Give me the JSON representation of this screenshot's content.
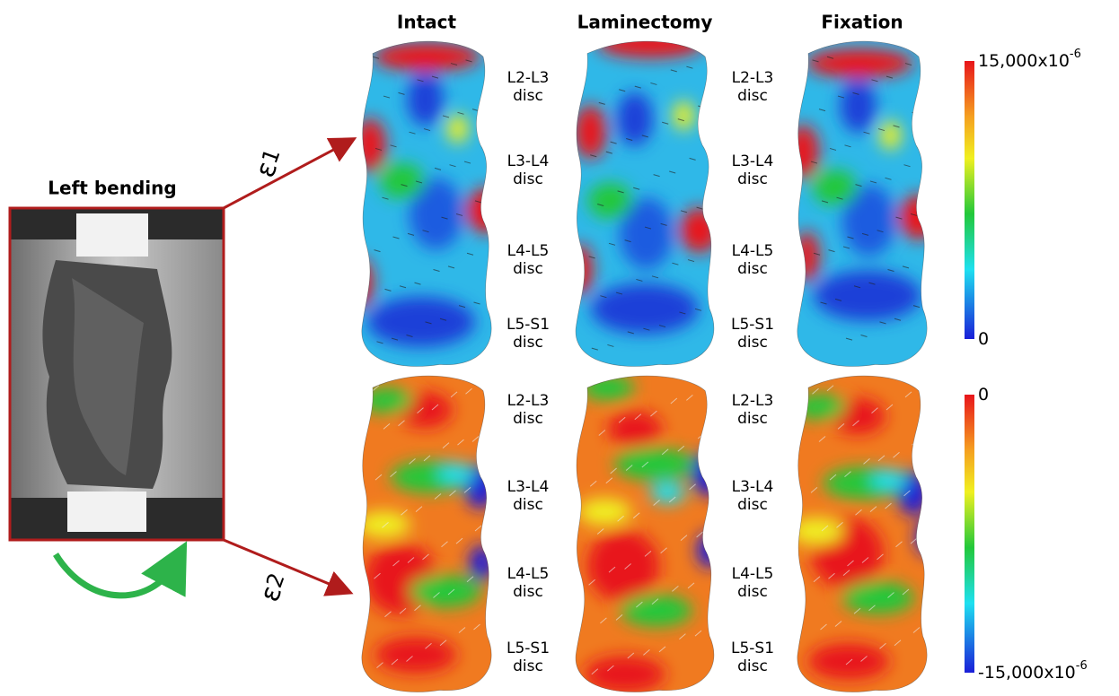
{
  "columns": [
    "Intact",
    "Laminectomy",
    "Fixation"
  ],
  "specimen": {
    "label": "Left bending"
  },
  "rows": [
    {
      "strain": {
        "symbol": "ε",
        "subscript": "1"
      },
      "gaps": [
        {
          "labels": [
            {
              "level": "L2-L3",
              "word": "disc"
            },
            {
              "level": "L3-L4",
              "word": "disc"
            },
            {
              "level": "L4-L5",
              "word": "disc"
            },
            {
              "level": "L5-S1",
              "word": "disc"
            }
          ]
        },
        {
          "labels": [
            {
              "level": "L2-L3",
              "word": "disc"
            },
            {
              "level": "L3-L4",
              "word": "disc"
            },
            {
              "level": "L4-L5",
              "word": "disc"
            },
            {
              "level": "L5-S1",
              "word": "disc"
            }
          ]
        }
      ],
      "colorbar": {
        "top": {
          "base": "15,000x10",
          "exponent": "-6"
        },
        "bottom": {
          "base": "0"
        }
      }
    },
    {
      "strain": {
        "symbol": "ε",
        "subscript": "2"
      },
      "gaps": [
        {
          "labels": [
            {
              "level": "L2-L3",
              "word": "disc"
            },
            {
              "level": "L3-L4",
              "word": "disc"
            },
            {
              "level": "L4-L5",
              "word": "disc"
            },
            {
              "level": "L5-S1",
              "word": "disc"
            }
          ]
        },
        {
          "labels": [
            {
              "level": "L2-L3",
              "word": "disc"
            },
            {
              "level": "L3-L4",
              "word": "disc"
            },
            {
              "level": "L4-L5",
              "word": "disc"
            },
            {
              "level": "L5-S1",
              "word": "disc"
            }
          ]
        }
      ],
      "colorbar": {
        "top": {
          "base": "0"
        },
        "bottom": {
          "base": "-15,000x10",
          "exponent": "-6"
        }
      }
    }
  ]
}
